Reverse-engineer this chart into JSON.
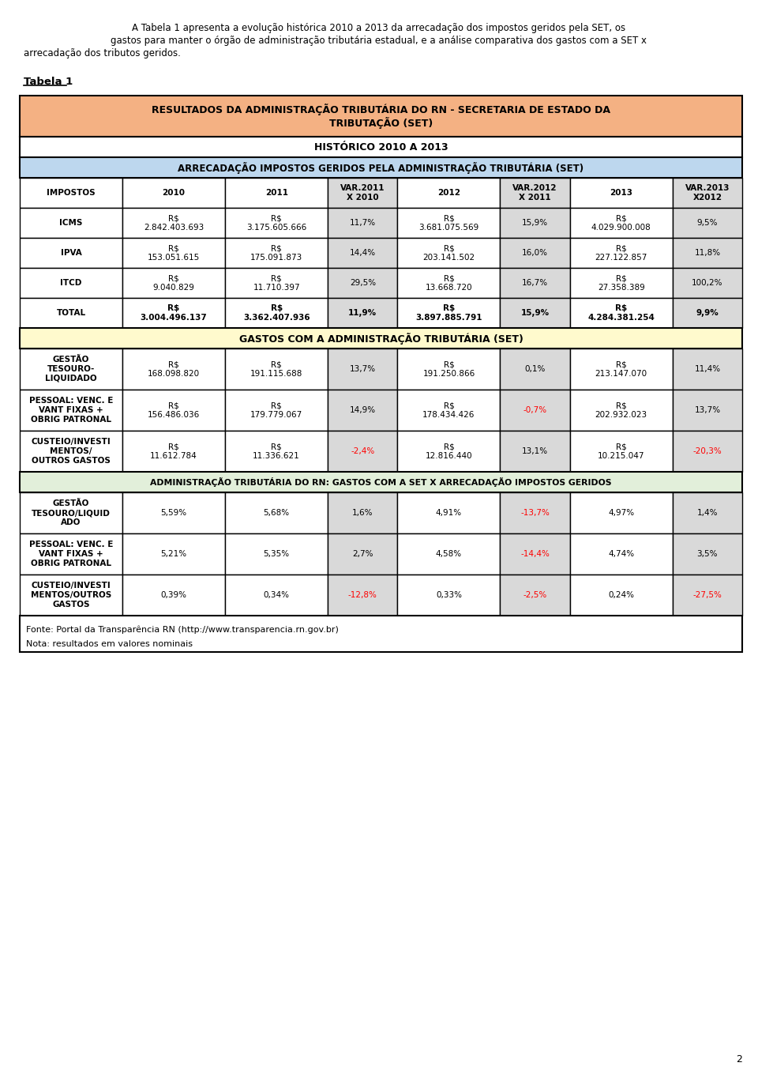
{
  "intro_line1": "A Tabela 1 apresenta a evolução histórica 2010 a 2013 da arrecadação dos impostos geridos pela SET, os",
  "intro_line2": "gastos para manter o órgão de administração tributária estadual, e a análise comparativa dos gastos com a SET x",
  "intro_line3": "arrecadação dos tributos geridos.",
  "tabela_label": "Tabela 1",
  "title1": "RESULTADOS DA ADMINISTRAÇÃO TRIBUTÁRIA DO RN - SECRETARIA DE ESTADO DA\nTRIBUTAÇÃO (SET)",
  "title2": "HISTÓRICO 2010 A 2013",
  "section1": "ARRECADAÇÃO IMPOSTOS GERIDOS PELA ADMINISTRAÇÃO TRIBUTÁRIA (SET)",
  "section2": "GASTOS COM A ADMINISTRAÇÃO TRIBUTÁRIA (SET)",
  "section3": "ADMINISTRAÇÃO TRIBUTÁRIA DO RN: GASTOS COM A SET X ARRECADAÇÃO IMPOSTOS GERIDOS",
  "col_headers": [
    "IMPOSTOS",
    "2010",
    "2011",
    "VAR.2011\nX 2010",
    "2012",
    "VAR.2012\nX 2011",
    "2013",
    "VAR.2013\nX2012"
  ],
  "arrecadacao_rows": [
    {
      "label": "ICMS",
      "v2010": "R$\n2.842.403.693",
      "v2011": "R$\n3.175.605.666",
      "var2011": "11,7%",
      "v2012": "R$\n3.681.075.569",
      "var2012": "15,9%",
      "v2013": "R$\n4.029.900.008",
      "var2013": "9,5%",
      "var2011_red": false,
      "var2012_red": false,
      "var2013_red": false
    },
    {
      "label": "IPVA",
      "v2010": "R$\n153.051.615",
      "v2011": "R$\n175.091.873",
      "var2011": "14,4%",
      "v2012": "R$\n203.141.502",
      "var2012": "16,0%",
      "v2013": "R$\n227.122.857",
      "var2013": "11,8%",
      "var2011_red": false,
      "var2012_red": false,
      "var2013_red": false
    },
    {
      "label": "ITCD",
      "v2010": "R$\n9.040.829",
      "v2011": "R$\n11.710.397",
      "var2011": "29,5%",
      "v2012": "R$\n13.668.720",
      "var2012": "16,7%",
      "v2013": "R$\n27.358.389",
      "var2013": "100,2%",
      "var2011_red": false,
      "var2012_red": false,
      "var2013_red": false
    },
    {
      "label": "TOTAL",
      "v2010": "R$\n3.004.496.137",
      "v2011": "R$\n3.362.407.936",
      "var2011": "11,9%",
      "v2012": "R$\n3.897.885.791",
      "var2012": "15,9%",
      "v2013": "R$\n4.284.381.254",
      "var2013": "9,9%",
      "var2011_red": false,
      "var2012_red": false,
      "var2013_red": false
    }
  ],
  "gastos_rows": [
    {
      "label": "GESTÃO\nTESOURO-\nLIQUIDADO",
      "v2010": "R$\n168.098.820",
      "v2011": "R$\n191.115.688",
      "var2011": "13,7%",
      "v2012": "R$\n191.250.866",
      "var2012": "0,1%",
      "v2013": "R$\n213.147.070",
      "var2013": "11,4%",
      "var2011_red": false,
      "var2012_red": false,
      "var2013_red": false
    },
    {
      "label": "PESSOAL: VENC. E\nVANT FIXAS +\nOBRIG PATRONAL",
      "v2010": "R$\n156.486.036",
      "v2011": "R$\n179.779.067",
      "var2011": "14,9%",
      "v2012": "R$\n178.434.426",
      "var2012": "-0,7%",
      "v2013": "R$\n202.932.023",
      "var2013": "13,7%",
      "var2011_red": false,
      "var2012_red": true,
      "var2013_red": false
    },
    {
      "label": "CUSTEIO/INVESTI\nMENTOS/\nOUTROS GASTOS",
      "v2010": "R$\n11.612.784",
      "v2011": "R$\n11.336.621",
      "var2011": "-2,4%",
      "v2012": "R$\n12.816.440",
      "var2012": "13,1%",
      "v2013": "R$\n10.215.047",
      "var2013": "-20,3%",
      "var2011_red": true,
      "var2012_red": false,
      "var2013_red": true
    }
  ],
  "ratio_rows": [
    {
      "label": "GESTÃO\nTESOURO/LIQUID\nADO",
      "v2010": "5,59%",
      "v2011": "5,68%",
      "var2011": "1,6%",
      "v2012": "4,91%",
      "var2012": "-13,7%",
      "v2013": "4,97%",
      "var2013": "1,4%",
      "var2011_red": false,
      "var2012_red": true,
      "var2013_red": false
    },
    {
      "label": "PESSOAL: VENC. E\nVANT FIXAS +\nOBRIG PATRONAL",
      "v2010": "5,21%",
      "v2011": "5,35%",
      "var2011": "2,7%",
      "v2012": "4,58%",
      "var2012": "-14,4%",
      "v2013": "4,74%",
      "var2013": "3,5%",
      "var2011_red": false,
      "var2012_red": true,
      "var2013_red": false
    },
    {
      "label": "CUSTEIO/INVESTI\nMENTOS/OUTROS\nGASTOS",
      "v2010": "0,39%",
      "v2011": "0,34%",
      "var2011": "-12,8%",
      "v2012": "0,33%",
      "var2012": "-2,5%",
      "v2013": "0,24%",
      "var2013": "-27,5%",
      "var2011_red": true,
      "var2012_red": true,
      "var2013_red": true
    }
  ],
  "footnote1": "Fonte: Portal da Transparência RN (http://www.transparencia.rn.gov.br)",
  "footnote2": "Nota: resultados em valores nominais",
  "color_header_orange": "#F4B183",
  "color_header_blue": "#BDD7EE",
  "color_header_yellow": "#FFFACD",
  "color_header_green": "#E2EFDA",
  "color_var_gray": "#D9D9D9",
  "color_border": "#000000",
  "color_red": "#FF0000",
  "color_black": "#000000",
  "page_number": "2"
}
